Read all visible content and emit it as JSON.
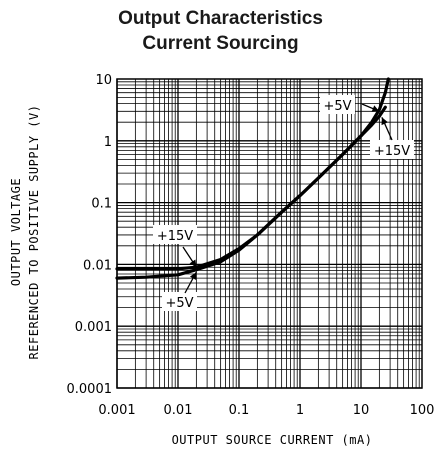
{
  "chart_data": {
    "type": "line",
    "title": "Output Characteristics",
    "subtitle": "Current Sourcing",
    "xlabel": "OUTPUT SOURCE CURRENT (mA)",
    "ylabel_line1": "OUTPUT VOLTAGE",
    "ylabel_line2": "REFERENCED TO POSITIVE SUPPLY (V)",
    "xscale": "log",
    "yscale": "log",
    "xlim": [
      0.001,
      100
    ],
    "ylim": [
      0.0001,
      10
    ],
    "grid": true,
    "x_ticks": [
      "0.001",
      "0.01",
      "0.1",
      "1",
      "10",
      "100"
    ],
    "y_ticks": [
      "10",
      "1",
      "0.1",
      "0.01",
      "0.001",
      "0.0001"
    ],
    "series": [
      {
        "name": "+15V",
        "x": [
          0.001,
          0.003,
          0.01,
          0.02,
          0.05,
          0.1,
          0.2,
          0.5,
          1,
          2,
          5,
          10,
          15,
          20,
          25
        ],
        "y": [
          0.0085,
          0.0085,
          0.0085,
          0.009,
          0.012,
          0.018,
          0.03,
          0.07,
          0.13,
          0.25,
          0.6,
          1.2,
          1.8,
          2.5,
          3.5
        ]
      },
      {
        "name": "+5V",
        "x": [
          0.001,
          0.003,
          0.01,
          0.02,
          0.05,
          0.1,
          0.2,
          0.5,
          1,
          2,
          5,
          10,
          15,
          20,
          25,
          28
        ],
        "y": [
          0.006,
          0.0062,
          0.0068,
          0.0082,
          0.011,
          0.017,
          0.03,
          0.07,
          0.13,
          0.25,
          0.6,
          1.2,
          2.0,
          3.2,
          6,
          10
        ]
      }
    ],
    "annotations": [
      {
        "text": "+15V",
        "series": "+15V"
      },
      {
        "text": "+5V",
        "series": "+5V"
      },
      {
        "text": "+5V",
        "series": "+5V"
      },
      {
        "text": "+15V",
        "series": "+15V"
      }
    ]
  }
}
